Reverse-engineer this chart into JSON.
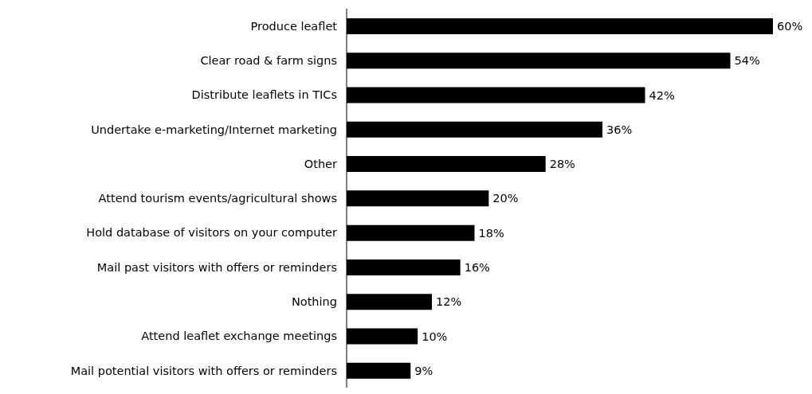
{
  "chart_data": {
    "type": "bar",
    "orientation": "horizontal",
    "categories": [
      "Produce leaflet",
      "Clear road & farm signs",
      "Distribute leaflets in TICs",
      "Undertake e-marketing/Internet marketing",
      "Other",
      "Attend tourism events/agricultural shows",
      "Hold database of visitors on your computer",
      "Mail past visitors with offers or reminders",
      "Nothing",
      "Attend leaflet exchange meetings",
      "Mail potential visitors with offers or reminders"
    ],
    "values": [
      60,
      54,
      42,
      36,
      28,
      20,
      18,
      16,
      12,
      10,
      9
    ],
    "value_labels": [
      "60%",
      "54%",
      "42%",
      "36%",
      "28%",
      "20%",
      "18%",
      "16%",
      "12%",
      "10%",
      "9%"
    ],
    "color": "#000000"
  }
}
